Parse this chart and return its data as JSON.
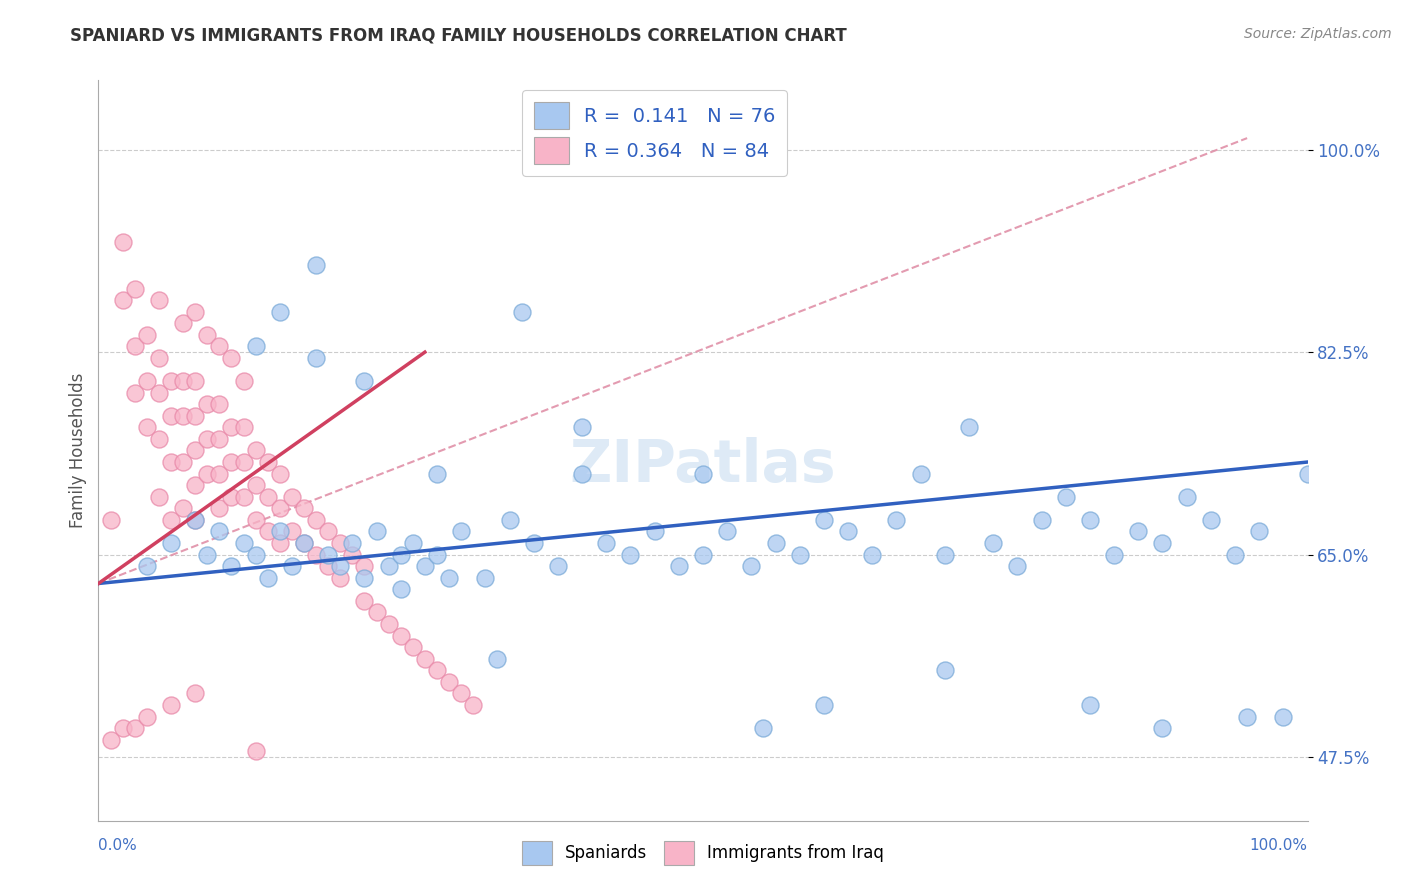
{
  "title": "SPANIARD VS IMMIGRANTS FROM IRAQ FAMILY HOUSEHOLDS CORRELATION CHART",
  "source": "Source: ZipAtlas.com",
  "ylabel": "Family Households",
  "xlim": [
    0.0,
    1.0
  ],
  "ylim": [
    0.42,
    1.06
  ],
  "yticks": [
    0.475,
    0.65,
    0.825,
    1.0
  ],
  "ytick_labels": [
    "47.5%",
    "65.0%",
    "82.5%",
    "100.0%"
  ],
  "blue_color": "#a8c8f0",
  "blue_edge_color": "#7aaad8",
  "pink_color": "#f8b4c8",
  "pink_edge_color": "#e888a8",
  "blue_line_color": "#3060c0",
  "pink_line_color": "#d04060",
  "dash_line_color": "#e090a8",
  "background_color": "#ffffff",
  "watermark": "ZIPatlas",
  "blue_scatter_x": [
    0.04,
    0.06,
    0.08,
    0.09,
    0.1,
    0.11,
    0.12,
    0.13,
    0.14,
    0.15,
    0.16,
    0.17,
    0.18,
    0.19,
    0.2,
    0.21,
    0.22,
    0.23,
    0.24,
    0.25,
    0.26,
    0.27,
    0.28,
    0.29,
    0.3,
    0.32,
    0.34,
    0.36,
    0.38,
    0.4,
    0.42,
    0.44,
    0.46,
    0.48,
    0.5,
    0.52,
    0.54,
    0.56,
    0.58,
    0.6,
    0.62,
    0.64,
    0.66,
    0.68,
    0.7,
    0.72,
    0.74,
    0.76,
    0.78,
    0.8,
    0.82,
    0.84,
    0.86,
    0.88,
    0.9,
    0.92,
    0.94,
    0.96,
    0.98,
    1.0,
    0.13,
    0.15,
    0.18,
    0.22,
    0.28,
    0.35,
    0.4,
    0.5,
    0.55,
    0.6,
    0.7,
    0.82,
    0.88,
    0.95,
    0.33,
    0.25
  ],
  "blue_scatter_y": [
    0.64,
    0.66,
    0.68,
    0.65,
    0.67,
    0.64,
    0.66,
    0.65,
    0.63,
    0.67,
    0.64,
    0.66,
    0.9,
    0.65,
    0.64,
    0.66,
    0.63,
    0.67,
    0.64,
    0.65,
    0.66,
    0.64,
    0.65,
    0.63,
    0.67,
    0.63,
    0.68,
    0.66,
    0.64,
    0.72,
    0.66,
    0.65,
    0.67,
    0.64,
    0.65,
    0.67,
    0.64,
    0.66,
    0.65,
    0.68,
    0.67,
    0.65,
    0.68,
    0.72,
    0.65,
    0.76,
    0.66,
    0.64,
    0.68,
    0.7,
    0.68,
    0.65,
    0.67,
    0.66,
    0.7,
    0.68,
    0.65,
    0.67,
    0.51,
    0.72,
    0.83,
    0.86,
    0.82,
    0.8,
    0.72,
    0.86,
    0.76,
    0.72,
    0.5,
    0.52,
    0.55,
    0.52,
    0.5,
    0.51,
    0.56,
    0.62
  ],
  "pink_scatter_x": [
    0.01,
    0.02,
    0.02,
    0.03,
    0.03,
    0.03,
    0.04,
    0.04,
    0.04,
    0.05,
    0.05,
    0.05,
    0.05,
    0.06,
    0.06,
    0.06,
    0.06,
    0.07,
    0.07,
    0.07,
    0.07,
    0.08,
    0.08,
    0.08,
    0.08,
    0.08,
    0.09,
    0.09,
    0.09,
    0.1,
    0.1,
    0.1,
    0.1,
    0.11,
    0.11,
    0.11,
    0.12,
    0.12,
    0.12,
    0.13,
    0.13,
    0.13,
    0.14,
    0.14,
    0.14,
    0.15,
    0.15,
    0.15,
    0.16,
    0.16,
    0.17,
    0.17,
    0.18,
    0.18,
    0.19,
    0.19,
    0.2,
    0.2,
    0.21,
    0.22,
    0.22,
    0.23,
    0.24,
    0.25,
    0.26,
    0.27,
    0.28,
    0.29,
    0.3,
    0.31,
    0.05,
    0.07,
    0.08,
    0.09,
    0.1,
    0.11,
    0.12,
    0.01,
    0.02,
    0.03,
    0.04,
    0.06,
    0.08,
    0.13
  ],
  "pink_scatter_y": [
    0.68,
    0.92,
    0.87,
    0.88,
    0.83,
    0.79,
    0.84,
    0.8,
    0.76,
    0.82,
    0.79,
    0.75,
    0.7,
    0.8,
    0.77,
    0.73,
    0.68,
    0.8,
    0.77,
    0.73,
    0.69,
    0.8,
    0.77,
    0.74,
    0.71,
    0.68,
    0.78,
    0.75,
    0.72,
    0.78,
    0.75,
    0.72,
    0.69,
    0.76,
    0.73,
    0.7,
    0.76,
    0.73,
    0.7,
    0.74,
    0.71,
    0.68,
    0.73,
    0.7,
    0.67,
    0.72,
    0.69,
    0.66,
    0.7,
    0.67,
    0.69,
    0.66,
    0.68,
    0.65,
    0.67,
    0.64,
    0.66,
    0.63,
    0.65,
    0.64,
    0.61,
    0.6,
    0.59,
    0.58,
    0.57,
    0.56,
    0.55,
    0.54,
    0.53,
    0.52,
    0.87,
    0.85,
    0.86,
    0.84,
    0.83,
    0.82,
    0.8,
    0.49,
    0.5,
    0.5,
    0.51,
    0.52,
    0.53,
    0.48
  ],
  "blue_line_x": [
    0.0,
    1.0
  ],
  "blue_line_y": [
    0.625,
    0.73
  ],
  "pink_line_x": [
    0.0,
    0.27
  ],
  "pink_line_y": [
    0.625,
    0.825
  ],
  "dash_line_x": [
    0.0,
    0.95
  ],
  "dash_line_y": [
    0.625,
    1.01
  ]
}
